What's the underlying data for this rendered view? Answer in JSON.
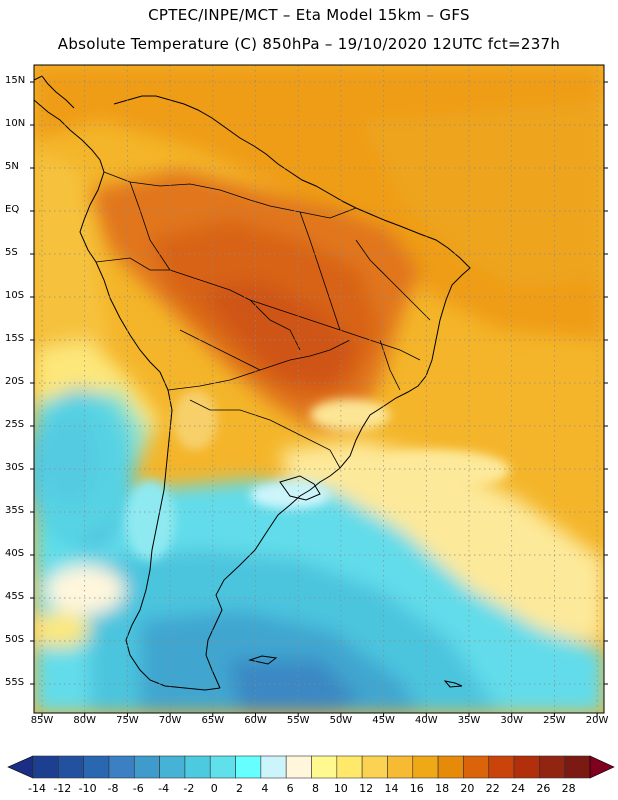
{
  "header": {
    "title_line1": "CPTEC/INPE/MCT –  Eta Model 15km – GFS",
    "title_line2": "Absolute Temperature (C) 850hPa – 19/10/2020 12UTC fct=237h"
  },
  "lat_labels": [
    "15N",
    "10N",
    "5N",
    "EQ",
    "5S",
    "10S",
    "15S",
    "20S",
    "25S",
    "30S",
    "35S",
    "40S",
    "45S",
    "50S",
    "55S"
  ],
  "lon_labels": [
    "85W",
    "80W",
    "75W",
    "70W",
    "65W",
    "60W",
    "55W",
    "50W",
    "45W",
    "40W",
    "35W",
    "30W",
    "25W",
    "20W"
  ],
  "colorbar": {
    "labels": [
      "-14",
      "-12",
      "-10",
      "-8",
      "-6",
      "-4",
      "-2",
      "0",
      "2",
      "4",
      "6",
      "8",
      "10",
      "12",
      "14",
      "16",
      "18",
      "20",
      "22",
      "24",
      "26",
      "28"
    ],
    "colors": [
      "#1c3f8f",
      "#22519f",
      "#2a67b1",
      "#3a80c2",
      "#3f9bcc",
      "#45b2d6",
      "#4ccbe0",
      "#5fe0ea",
      "#66ffff",
      "#ccf5fb",
      "#fff6dc",
      "#fff98f",
      "#ffe86a",
      "#fcd252",
      "#f7bb33",
      "#efa816",
      "#e68a0a",
      "#db6309",
      "#c9430a",
      "#b1300b",
      "#922512",
      "#7a1a12"
    ],
    "low_arrow_color": "#1a2e86",
    "high_arrow_color": "#800020"
  }
}
